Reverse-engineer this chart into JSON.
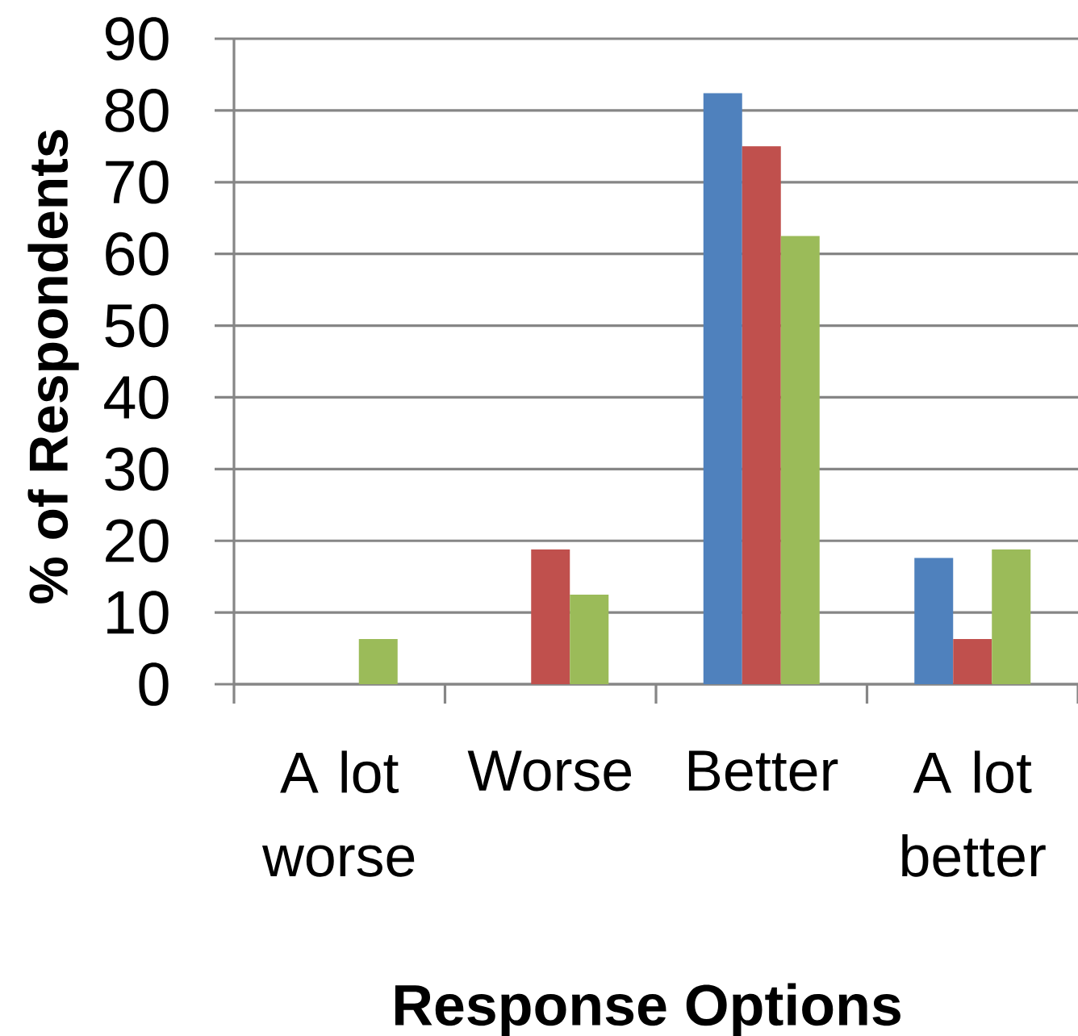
{
  "chart_data": {
    "type": "bar",
    "xlabel": "Response Options",
    "ylabel": "% of Respondents",
    "categories": [
      "A lot worse",
      "Worse",
      "Better",
      "A lot better"
    ],
    "series": [
      {
        "color": "#4f81bd",
        "values": [
          0,
          0,
          82.4,
          17.6
        ]
      },
      {
        "color": "#c0504d",
        "values": [
          0,
          18.8,
          75,
          6.3
        ]
      },
      {
        "color": "#9bbb59",
        "values": [
          6.3,
          12.5,
          62.5,
          18.8
        ]
      }
    ],
    "ylim": [
      0,
      90
    ],
    "yticks": [
      0,
      10,
      20,
      30,
      40,
      50,
      60,
      70,
      80,
      90
    ],
    "grid": "y",
    "legend": false
  }
}
